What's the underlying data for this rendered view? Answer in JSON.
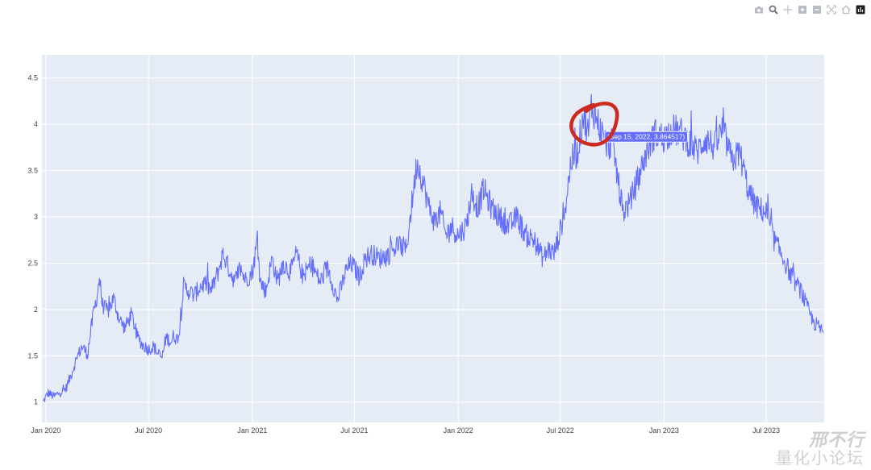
{
  "modebar": {
    "buttons": [
      {
        "name": "camera-icon"
      },
      {
        "name": "zoom-icon"
      },
      {
        "name": "pan-icon"
      },
      {
        "name": "zoom-in-icon"
      },
      {
        "name": "zoom-out-icon"
      },
      {
        "name": "autoscale-icon"
      },
      {
        "name": "reset-axes-icon"
      },
      {
        "name": "plotly-logo-icon"
      }
    ]
  },
  "hover": {
    "label": "(Sep 15, 2022, 3.864517)",
    "x": "2022-09-15",
    "y": 3.864517
  },
  "annotation": {
    "shape": "hand-drawn-circle",
    "color": "#cc2a1e"
  },
  "watermark": {
    "line1": "邢不行",
    "line2": "量化小论坛"
  },
  "colors": {
    "line": "#636efa",
    "plot_bg": "#e5ecf6",
    "grid": "#ffffff",
    "circle": "#cc2a1e",
    "hover_bg": "#636efa"
  },
  "chart_data": {
    "type": "line",
    "title": "",
    "xlabel": "",
    "ylabel": "",
    "xlim": [
      "2019-12-25",
      "2023-10-12"
    ],
    "ylim": [
      0.78,
      4.75
    ],
    "grid": true,
    "legend": "none",
    "x_ticks": [
      {
        "date": "2020-01-01",
        "label": "Jan 2020"
      },
      {
        "date": "2020-07-01",
        "label": "Jul 2020"
      },
      {
        "date": "2021-01-01",
        "label": "Jan 2021"
      },
      {
        "date": "2021-07-01",
        "label": "Jul 2021"
      },
      {
        "date": "2022-01-01",
        "label": "Jan 2022"
      },
      {
        "date": "2022-07-01",
        "label": "Jul 2022"
      },
      {
        "date": "2023-01-01",
        "label": "Jan 2023"
      },
      {
        "date": "2023-07-01",
        "label": "Jul 2023"
      }
    ],
    "y_ticks": [
      {
        "value": 1,
        "label": "1"
      },
      {
        "value": 1.5,
        "label": "1.5"
      },
      {
        "value": 2,
        "label": "2"
      },
      {
        "value": 2.5,
        "label": "2.5"
      },
      {
        "value": 3,
        "label": "3"
      },
      {
        "value": 3.5,
        "label": "3.5"
      },
      {
        "value": 4,
        "label": "4"
      },
      {
        "value": 4.5,
        "label": "4.5"
      }
    ],
    "series": [
      {
        "x": [
          "2019-12-27",
          "2020-01-05",
          "2020-01-15",
          "2020-01-25",
          "2020-02-05",
          "2020-02-15",
          "2020-02-25",
          "2020-03-05",
          "2020-03-15",
          "2020-03-25",
          "2020-04-01",
          "2020-04-05",
          "2020-04-10",
          "2020-04-20",
          "2020-04-30",
          "2020-05-10",
          "2020-05-20",
          "2020-06-01",
          "2020-06-10",
          "2020-06-20",
          "2020-07-01",
          "2020-07-10",
          "2020-07-20",
          "2020-07-25",
          "2020-08-01",
          "2020-08-10",
          "2020-08-15",
          "2020-08-20",
          "2020-08-25",
          "2020-09-01",
          "2020-09-10",
          "2020-09-20",
          "2020-10-01",
          "2020-10-10",
          "2020-10-20",
          "2020-11-01",
          "2020-11-10",
          "2020-11-20",
          "2020-12-01",
          "2020-12-10",
          "2020-12-20",
          "2021-01-01",
          "2021-01-10",
          "2021-01-15",
          "2021-01-25",
          "2021-02-05",
          "2021-02-15",
          "2021-02-25",
          "2021-03-10",
          "2021-03-20",
          "2021-04-01",
          "2021-04-15",
          "2021-05-01",
          "2021-05-15",
          "2021-06-01",
          "2021-06-15",
          "2021-06-25",
          "2021-07-01",
          "2021-07-10",
          "2021-07-20",
          "2021-08-01",
          "2021-08-15",
          "2021-09-01",
          "2021-09-15",
          "2021-10-01",
          "2021-10-10",
          "2021-10-20",
          "2021-11-01",
          "2021-11-10",
          "2021-11-20",
          "2021-12-01",
          "2021-12-10",
          "2021-12-20",
          "2022-01-01",
          "2022-01-15",
          "2022-01-25",
          "2022-02-05",
          "2022-02-15",
          "2022-03-01",
          "2022-03-15",
          "2022-04-01",
          "2022-04-15",
          "2022-05-01",
          "2022-05-15",
          "2022-06-01",
          "2022-06-10",
          "2022-06-20",
          "2022-07-01",
          "2022-07-10",
          "2022-07-20",
          "2022-08-01",
          "2022-08-10",
          "2022-08-20",
          "2022-08-25",
          "2022-09-01",
          "2022-09-15",
          "2022-09-25",
          "2022-10-01",
          "2022-10-10",
          "2022-10-20",
          "2022-11-01",
          "2022-11-15",
          "2022-12-01",
          "2022-12-15",
          "2023-01-01",
          "2023-01-15",
          "2023-02-01",
          "2023-02-15",
          "2023-03-01",
          "2023-03-15",
          "2023-04-01",
          "2023-04-15",
          "2023-05-01",
          "2023-05-15",
          "2023-06-01",
          "2023-06-15",
          "2023-07-01",
          "2023-07-15",
          "2023-08-01",
          "2023-08-15",
          "2023-09-01",
          "2023-09-10",
          "2023-09-20",
          "2023-09-25",
          "2023-10-01",
          "2023-10-10"
        ],
        "y": [
          1.0,
          1.1,
          1.06,
          1.1,
          1.14,
          1.3,
          1.48,
          1.6,
          1.52,
          1.95,
          2.15,
          2.35,
          2.05,
          1.98,
          2.12,
          1.9,
          1.8,
          1.95,
          1.72,
          1.62,
          1.57,
          1.6,
          1.5,
          1.48,
          1.7,
          1.65,
          1.72,
          1.68,
          1.75,
          2.25,
          2.2,
          2.15,
          2.25,
          2.28,
          2.2,
          2.4,
          2.6,
          2.45,
          2.3,
          2.45,
          2.32,
          2.4,
          2.75,
          2.3,
          2.2,
          2.55,
          2.3,
          2.5,
          2.4,
          2.6,
          2.35,
          2.5,
          2.3,
          2.45,
          2.1,
          2.4,
          2.5,
          2.45,
          2.35,
          2.55,
          2.6,
          2.55,
          2.6,
          2.7,
          2.65,
          3.1,
          3.6,
          3.35,
          3.1,
          2.95,
          3.05,
          2.8,
          2.9,
          2.8,
          2.9,
          3.25,
          3.1,
          3.3,
          3.1,
          3.0,
          2.9,
          3.0,
          2.8,
          2.75,
          2.55,
          2.65,
          2.6,
          2.85,
          3.1,
          3.6,
          3.7,
          4.1,
          3.9,
          4.2,
          4.1,
          3.86,
          3.75,
          3.85,
          3.45,
          3.05,
          3.15,
          3.4,
          3.7,
          3.9,
          3.85,
          3.95,
          3.9,
          3.8,
          3.7,
          3.85,
          3.75,
          3.95,
          3.6,
          3.7,
          3.25,
          3.1,
          3.05,
          2.75,
          2.55,
          2.35,
          2.2,
          2.05,
          1.9,
          1.85,
          1.82,
          1.75
        ],
        "color": "#636efa"
      }
    ]
  }
}
